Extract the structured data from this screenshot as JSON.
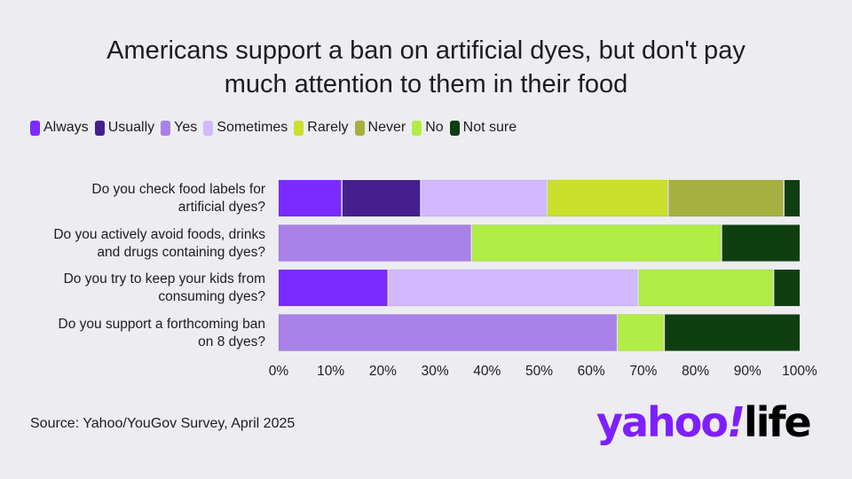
{
  "chart_data": {
    "type": "bar",
    "orientation": "horizontal",
    "stacked": true,
    "title": "Americans support a ban on artificial dyes, but don't pay much attention to them in their food",
    "xlabel": "",
    "ylabel": "",
    "xlim": [
      0,
      100
    ],
    "x_ticks": [
      "0%",
      "10%",
      "20%",
      "30%",
      "40%",
      "50%",
      "60%",
      "70%",
      "80%",
      "90%",
      "100%"
    ],
    "legend_position": "top-left",
    "legend": [
      {
        "name": "Always",
        "color": "#7b2bff"
      },
      {
        "name": "Usually",
        "color": "#461f8c"
      },
      {
        "name": "Yes",
        "color": "#a981e8"
      },
      {
        "name": "Sometimes",
        "color": "#d2b8ff"
      },
      {
        "name": "Rarely",
        "color": "#c9e02c"
      },
      {
        "name": "Never",
        "color": "#a6b040"
      },
      {
        "name": "No",
        "color": "#b1ed45"
      },
      {
        "name": "Not sure",
        "color": "#0f3f10"
      }
    ],
    "categories": [
      "Do you check food labels for artificial dyes?",
      "Do you actively avoid foods, drinks and drugs containing dyes?",
      "Do you try to keep your kids from consuming dyes?",
      "Do you support a forthcoming ban on 8 dyes?"
    ],
    "category_lines": [
      [
        "Do you check food labels for",
        "artificial dyes?"
      ],
      [
        "Do you actively avoid foods, drinks",
        "and drugs containing dyes?"
      ],
      [
        "Do you try to keep your kids from",
        "consuming dyes?"
      ],
      [
        "Do you support a forthcoming ban",
        "on 8 dyes?"
      ]
    ],
    "rows": [
      [
        {
          "series": "Always",
          "value": 12
        },
        {
          "series": "Usually",
          "value": 15
        },
        {
          "series": "Sometimes",
          "value": 24
        },
        {
          "series": "Rarely",
          "value": 23
        },
        {
          "series": "Never",
          "value": 22
        },
        {
          "series": "Not sure",
          "value": 3
        }
      ],
      [
        {
          "series": "Yes",
          "value": 37
        },
        {
          "series": "No",
          "value": 48
        },
        {
          "series": "Not sure",
          "value": 15
        }
      ],
      [
        {
          "series": "Always",
          "value": 21
        },
        {
          "series": "Sometimes",
          "value": 48
        },
        {
          "series": "No",
          "value": 26
        },
        {
          "series": "Not sure",
          "value": 5
        }
      ],
      [
        {
          "series": "Yes",
          "value": 65
        },
        {
          "series": "No",
          "value": 9
        },
        {
          "series": "Not sure",
          "value": 26
        }
      ]
    ]
  },
  "source": "Source: Yahoo/YouGov Survey, April 2025",
  "logo": {
    "yahoo": "yahoo",
    "bang": "!",
    "life": "life"
  }
}
